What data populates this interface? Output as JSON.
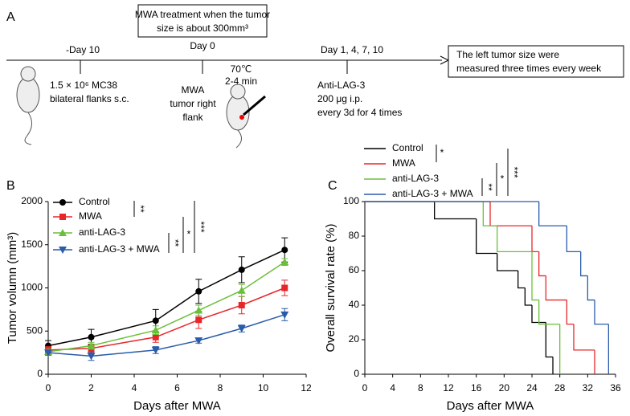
{
  "panel_a": {
    "label": "A",
    "treatment_box": [
      "MWA treatment when the tumor",
      "size is about 300mm³"
    ],
    "timepoints": [
      "-Day 10",
      "Day 0",
      "Day 1, 4, 7, 10"
    ],
    "step1": [
      "1.5 × 10⁶ MC38",
      "bilateral flanks s.c."
    ],
    "step2": [
      "MWA",
      "tumor right",
      "flank"
    ],
    "step2_condition": [
      "70℃",
      "2-4 min"
    ],
    "step3": [
      "Anti-LAG-3",
      "200 μg i.p.",
      "every 3d for 4 times"
    ],
    "result_box": [
      "The left tumor size were",
      "measured three times every week"
    ]
  },
  "chart_data": [
    {
      "type": "line",
      "panel_label": "B",
      "x": [
        0,
        2,
        5,
        7,
        9,
        11
      ],
      "series": [
        {
          "name": "Control",
          "color": "#000000",
          "marker": "circle",
          "values": [
            330,
            430,
            620,
            960,
            1210,
            1440
          ],
          "errors": [
            60,
            90,
            130,
            140,
            150,
            140
          ]
        },
        {
          "name": "MWA",
          "color": "#e8262a",
          "marker": "square",
          "values": [
            280,
            300,
            430,
            630,
            800,
            1000
          ],
          "errors": [
            40,
            50,
            60,
            100,
            100,
            90
          ]
        },
        {
          "name": "anti-LAG-3",
          "color": "#6abf3a",
          "marker": "triangle-up",
          "values": [
            260,
            330,
            510,
            740,
            970,
            1300
          ],
          "errors": [
            30,
            40,
            50,
            60,
            70,
            40
          ]
        },
        {
          "name": "anti-LAG-3 + MWA",
          "color": "#2a5cab",
          "marker": "triangle-down",
          "values": [
            250,
            210,
            280,
            390,
            530,
            690
          ],
          "errors": [
            30,
            50,
            40,
            30,
            40,
            70
          ]
        }
      ],
      "xlim": [
        0,
        12
      ],
      "xticks": [
        0,
        2,
        4,
        6,
        8,
        10,
        12
      ],
      "ylim": [
        0,
        2000
      ],
      "yticks": [
        0,
        500,
        1000,
        1500,
        2000
      ],
      "x_label": "Days after MWA",
      "y_label": "Tumor volumn (mm³)",
      "significance": [
        "**",
        "**",
        "*",
        "***"
      ]
    },
    {
      "type": "step",
      "panel_label": "C",
      "series": [
        {
          "name": "Control",
          "color": "#000000",
          "x": [
            0,
            10,
            16,
            19,
            22,
            23,
            24,
            26,
            27
          ],
          "values": [
            100,
            90,
            70,
            60,
            50,
            40,
            30,
            10,
            0
          ]
        },
        {
          "name": "MWA",
          "color": "#e8262a",
          "x": [
            0,
            18,
            24,
            25,
            26,
            29,
            30,
            33
          ],
          "values": [
            100,
            86,
            71,
            57,
            43,
            29,
            14,
            0
          ]
        },
        {
          "name": "anti-LAG-3",
          "color": "#6abf3a",
          "x": [
            0,
            17,
            19,
            24,
            25,
            28
          ],
          "values": [
            100,
            86,
            71,
            43,
            29,
            0
          ]
        },
        {
          "name": "anti-LAG-3 + MWA",
          "color": "#2a5cab",
          "x": [
            0,
            25,
            29,
            31,
            32,
            33,
            35
          ],
          "values": [
            100,
            86,
            71,
            57,
            43,
            29,
            0
          ]
        }
      ],
      "xlim": [
        0,
        36
      ],
      "xticks": [
        0,
        4,
        8,
        12,
        16,
        20,
        24,
        28,
        32,
        36
      ],
      "ylim": [
        0,
        100
      ],
      "yticks": [
        0,
        20,
        40,
        60,
        80,
        100
      ],
      "x_label": "Days after MWA",
      "y_label": "Overall survival rate (%)",
      "significance": [
        "*",
        "**",
        "*",
        "***"
      ]
    }
  ]
}
